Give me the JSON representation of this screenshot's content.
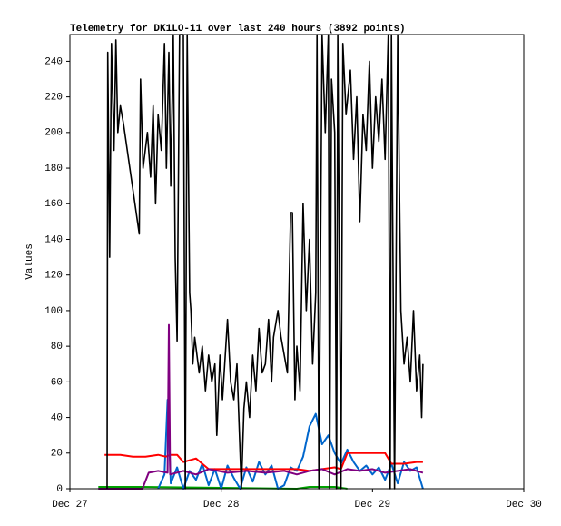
{
  "chart_data": {
    "type": "line",
    "title": "Telemetry for DK1LO-11 over last 240 hours (3892 points)",
    "y_label": "Values",
    "xlim": [
      0,
      72
    ],
    "xticks": [
      {
        "value": 0,
        "label": "Dec 27"
      },
      {
        "value": 24,
        "label": "Dec 28"
      },
      {
        "value": 48,
        "label": "Dec 29"
      },
      {
        "value": 72,
        "label": "Dec 30"
      }
    ],
    "ylim": [
      0,
      255
    ],
    "yticks": [
      0,
      20,
      40,
      60,
      80,
      100,
      120,
      140,
      160,
      180,
      200,
      220,
      240
    ],
    "grid": false,
    "series": [
      {
        "color": "#00a000",
        "x": [
          4.5,
          11.5,
          36,
          38,
          42,
          44
        ],
        "values": [
          1,
          1,
          0,
          1,
          1,
          0
        ]
      },
      {
        "color": "#0066cc",
        "x": [
          14,
          15,
          15.5,
          16,
          17,
          18,
          19,
          20,
          21,
          22,
          23,
          24,
          25,
          26,
          27,
          28,
          29,
          30,
          31,
          32,
          33,
          34,
          35,
          36,
          37,
          38,
          39,
          40,
          41,
          42,
          43,
          44,
          45,
          46,
          47,
          48,
          49,
          50,
          51,
          52,
          53,
          54,
          55,
          56
        ],
        "values": [
          0,
          8,
          50,
          3,
          12,
          0,
          10,
          5,
          14,
          2,
          11,
          0,
          13,
          6,
          0,
          12,
          4,
          15,
          8,
          13,
          0,
          2,
          12,
          10,
          18,
          35,
          42,
          25,
          30,
          20,
          14,
          22,
          15,
          10,
          13,
          8,
          12,
          5,
          14,
          3,
          15,
          10,
          12,
          0
        ]
      },
      {
        "color": "#ff0000",
        "x": [
          5.5,
          8,
          10,
          12,
          14,
          15.2,
          16,
          17,
          18,
          20,
          21,
          22,
          24,
          27,
          30,
          33,
          36,
          38,
          40,
          42,
          43,
          44,
          47,
          50,
          51,
          53,
          55,
          56
        ],
        "values": [
          19,
          19,
          18,
          18,
          19,
          18,
          19,
          19,
          15,
          17,
          14,
          11,
          11,
          11,
          11,
          11,
          11,
          10,
          11,
          12,
          11,
          20,
          20,
          20,
          14,
          14,
          15,
          15
        ]
      },
      {
        "color": "#800080",
        "x": [
          4.5,
          11.5,
          12.5,
          14,
          15.5,
          15.7,
          15.9,
          18,
          20,
          22,
          25,
          28,
          31,
          34,
          36,
          38,
          40,
          42,
          44,
          46,
          48,
          50,
          52,
          54,
          56
        ],
        "values": [
          0,
          0,
          9,
          10,
          9,
          92,
          8,
          10,
          8,
          11,
          9,
          10,
          9,
          10,
          8,
          10,
          11,
          8,
          11,
          10,
          11,
          9,
          10,
          11,
          9
        ]
      },
      {
        "color": "#000000",
        "x": [
          5.9,
          6.0,
          6.3,
          6.6,
          7.0,
          7.3,
          7.6,
          8.0,
          8.5,
          11,
          11.2,
          11.6,
          12.3,
          12.8,
          13.2,
          13.6,
          14.0,
          14.5,
          15.0,
          15.3,
          15.7,
          16.0,
          16.4,
          16.7,
          17.0,
          17.4,
          18.0,
          18.3,
          18.6,
          19.0,
          19.2,
          19.5,
          19.8,
          20.5,
          21.0,
          21.5,
          22.0,
          22.5,
          23,
          23.3,
          23.8,
          24.2,
          25,
          25.5,
          26,
          26.5,
          27,
          27.2,
          27.6,
          28,
          28.5,
          29,
          29.5,
          30,
          30.5,
          31,
          31.5,
          32,
          32.3,
          33,
          33.5,
          34.5,
          35,
          35.3,
          35.7,
          36,
          36.5,
          37,
          37.5,
          38,
          38.5,
          39,
          39.2,
          39.5,
          40,
          40.5,
          41,
          41.2,
          41.5,
          42,
          42.3,
          42.5,
          43,
          43.3,
          43.8,
          44.5,
          45,
          45.5,
          46,
          46.5,
          47,
          47.5,
          48,
          48.5,
          49,
          49.5,
          50,
          50.5,
          50.8,
          51,
          51.5,
          52,
          52.5,
          53,
          53.5,
          54,
          54.5,
          55,
          55.5,
          55.8,
          56
        ],
        "values": [
          0,
          245,
          130,
          250,
          190,
          252,
          200,
          215,
          205,
          143,
          230,
          180,
          200,
          175,
          215,
          160,
          210,
          190,
          250,
          180,
          245,
          170,
          255,
          130,
          83,
          255,
          255,
          0,
          255,
          110,
          100,
          70,
          85,
          65,
          80,
          55,
          75,
          60,
          70,
          30,
          75,
          50,
          95,
          60,
          50,
          70,
          20,
          0,
          45,
          60,
          40,
          75,
          55,
          90,
          65,
          70,
          95,
          60,
          85,
          100,
          85,
          65,
          155,
          155,
          50,
          80,
          55,
          160,
          100,
          140,
          70,
          110,
          255,
          0,
          255,
          200,
          255,
          0,
          230,
          200,
          0,
          255,
          0,
          250,
          210,
          235,
          185,
          220,
          150,
          210,
          190,
          240,
          180,
          220,
          195,
          230,
          185,
          255,
          0,
          255,
          0,
          255,
          100,
          70,
          85,
          60,
          100,
          55,
          75,
          40,
          70
        ]
      }
    ]
  }
}
